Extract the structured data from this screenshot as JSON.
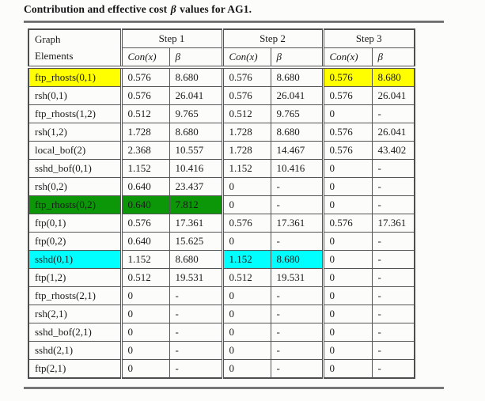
{
  "caption": {
    "prefix": "Contribution and effective cost ",
    "beta": "β",
    "suffix": " values for AG1."
  },
  "colors": {
    "yellow": "#ffff00",
    "green": "#0b9708",
    "cyan": "#00ffff"
  },
  "table": {
    "corner_header": {
      "line1": "Graph",
      "line2": "Elements"
    },
    "step_headers": [
      "Step 1",
      "Step 2",
      "Step 3"
    ],
    "sub_headers": {
      "con": "Con(x)",
      "beta": "β"
    },
    "rows": [
      {
        "label": "ftp_rhosts(0,1)",
        "step1": [
          "0.576",
          "8.680"
        ],
        "step2": [
          "0.576",
          "8.680"
        ],
        "step3": [
          "0.576",
          "8.680"
        ],
        "highlight": {
          "color": "yellow",
          "cells": [
            "label",
            "step3"
          ]
        }
      },
      {
        "label": "rsh(0,1)",
        "step1": [
          "0.576",
          "26.041"
        ],
        "step2": [
          "0.576",
          "26.041"
        ],
        "step3": [
          "0.576",
          "26.041"
        ],
        "highlight": null
      },
      {
        "label": "ftp_rhosts(1,2)",
        "step1": [
          "0.512",
          "9.765"
        ],
        "step2": [
          "0.512",
          "9.765"
        ],
        "step3": [
          "0",
          "-"
        ],
        "highlight": null
      },
      {
        "label": "rsh(1,2)",
        "step1": [
          "1.728",
          "8.680"
        ],
        "step2": [
          "1.728",
          "8.680"
        ],
        "step3": [
          "0.576",
          "26.041"
        ],
        "highlight": null
      },
      {
        "label": "local_bof(2)",
        "step1": [
          "2.368",
          "10.557"
        ],
        "step2": [
          "1.728",
          "14.467"
        ],
        "step3": [
          "0.576",
          "43.402"
        ],
        "highlight": null
      },
      {
        "label": "sshd_bof(0,1)",
        "step1": [
          "1.152",
          "10.416"
        ],
        "step2": [
          "1.152",
          "10.416"
        ],
        "step3": [
          "0",
          "-"
        ],
        "highlight": null
      },
      {
        "label": "rsh(0,2)",
        "step1": [
          "0.640",
          "23.437"
        ],
        "step2": [
          "0",
          "-"
        ],
        "step3": [
          "0",
          "-"
        ],
        "highlight": null
      },
      {
        "label": "ftp_rhosts(0,2)",
        "step1": [
          "0.640",
          "7.812"
        ],
        "step2": [
          "0",
          "-"
        ],
        "step3": [
          "0",
          "-"
        ],
        "highlight": {
          "color": "green",
          "cells": [
            "label",
            "step1"
          ]
        }
      },
      {
        "label": "ftp(0,1)",
        "step1": [
          "0.576",
          "17.361"
        ],
        "step2": [
          "0.576",
          "17.361"
        ],
        "step3": [
          "0.576",
          "17.361"
        ],
        "highlight": null
      },
      {
        "label": "ftp(0,2)",
        "step1": [
          "0.640",
          "15.625"
        ],
        "step2": [
          "0",
          "-"
        ],
        "step3": [
          "0",
          "-"
        ],
        "highlight": null
      },
      {
        "label": "sshd(0,1)",
        "step1": [
          "1.152",
          "8.680"
        ],
        "step2": [
          "1.152",
          "8.680"
        ],
        "step3": [
          "0",
          "-"
        ],
        "highlight": {
          "color": "cyan",
          "cells": [
            "label",
            "step2"
          ]
        }
      },
      {
        "label": "ftp(1,2)",
        "step1": [
          "0.512",
          "19.531"
        ],
        "step2": [
          "0.512",
          "19.531"
        ],
        "step3": [
          "0",
          "-"
        ],
        "highlight": null
      },
      {
        "label": "ftp_rhosts(2,1)",
        "step1": [
          "0",
          "-"
        ],
        "step2": [
          "0",
          "-"
        ],
        "step3": [
          "0",
          "-"
        ],
        "highlight": null
      },
      {
        "label": "rsh(2,1)",
        "step1": [
          "0",
          "-"
        ],
        "step2": [
          "0",
          "-"
        ],
        "step3": [
          "0",
          "-"
        ],
        "highlight": null
      },
      {
        "label": "sshd_bof(2,1)",
        "step1": [
          "0",
          "-"
        ],
        "step2": [
          "0",
          "-"
        ],
        "step3": [
          "0",
          "-"
        ],
        "highlight": null
      },
      {
        "label": "sshd(2,1)",
        "step1": [
          "0",
          "-"
        ],
        "step2": [
          "0",
          "-"
        ],
        "step3": [
          "0",
          "-"
        ],
        "highlight": null
      },
      {
        "label": "ftp(2,1)",
        "step1": [
          "0",
          "-"
        ],
        "step2": [
          "0",
          "-"
        ],
        "step3": [
          "0",
          "-"
        ],
        "highlight": null
      }
    ]
  }
}
